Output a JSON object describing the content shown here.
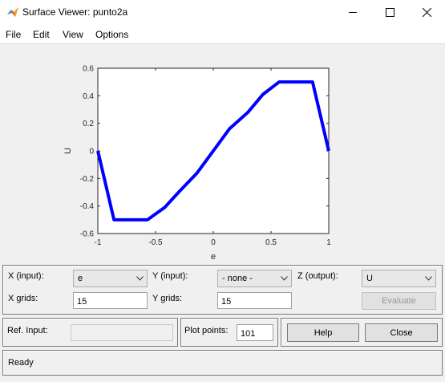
{
  "window": {
    "title": "Surface Viewer: punto2a",
    "icon": "matlab-icon",
    "controls": {
      "minimize": "minimize-icon",
      "maximize": "maximize-icon",
      "close": "close-icon"
    }
  },
  "menu": [
    "File",
    "Edit",
    "View",
    "Options"
  ],
  "chart_data": {
    "type": "line",
    "xlabel": "e",
    "ylabel": "U",
    "xlim": [
      -1,
      1
    ],
    "ylim": [
      -0.6,
      0.6
    ],
    "xticks": [
      -1,
      -0.5,
      0,
      0.5,
      1
    ],
    "xtick_labels": [
      "-1",
      "-0.5",
      "0",
      "0.5",
      "1"
    ],
    "yticks": [
      -0.6,
      -0.4,
      -0.2,
      0,
      0.2,
      0.4,
      0.6
    ],
    "ytick_labels": [
      "-0.6",
      "-0.4",
      "-0.2",
      "0",
      "0.2",
      "0.4",
      "0.6"
    ],
    "grid": false,
    "series": [
      {
        "color": "#0000ff",
        "x": [
          -1,
          -0.86,
          -0.57,
          -0.42,
          -0.3,
          -0.14,
          0,
          0.14,
          0.3,
          0.43,
          0.57,
          0.86,
          1
        ],
        "y": [
          0,
          -0.5,
          -0.5,
          -0.41,
          -0.3,
          -0.16,
          0,
          0.16,
          0.28,
          0.41,
          0.5,
          0.5,
          0
        ]
      }
    ]
  },
  "controls": {
    "x_input": {
      "label": "X (input):",
      "value": "e"
    },
    "y_input": {
      "label": "Y (input):",
      "value": "- none -"
    },
    "z_output": {
      "label": "Z (output):",
      "value": "U"
    },
    "x_grids": {
      "label": "X grids:",
      "value": "15"
    },
    "y_grids": {
      "label": "Y grids:",
      "value": "15"
    },
    "evaluate_label": "Evaluate",
    "ref_input": {
      "label": "Ref. Input:",
      "value": ""
    },
    "plot_points": {
      "label": "Plot points:",
      "value": "101"
    },
    "help_label": "Help",
    "close_label": "Close"
  },
  "status": "Ready"
}
